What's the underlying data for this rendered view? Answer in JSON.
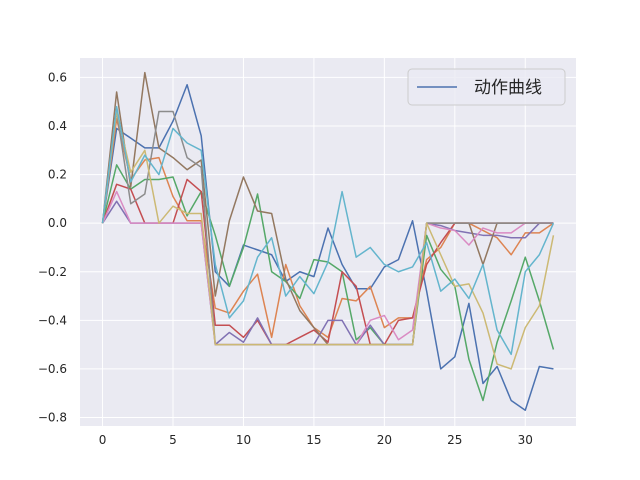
{
  "chart_data": {
    "type": "line",
    "title": "",
    "xlabel": "",
    "ylabel": "",
    "xlim": [
      -1.6,
      33.6
    ],
    "ylim": [
      -0.835,
      0.68
    ],
    "xticks": [
      0,
      5,
      10,
      15,
      20,
      25,
      30
    ],
    "yticks": [
      -0.8,
      -0.6,
      -0.4,
      -0.2,
      0.0,
      0.2,
      0.4,
      0.6
    ],
    "ytick_labels": [
      "−0.8",
      "−0.6",
      "−0.4",
      "−0.2",
      "0.0",
      "0.2",
      "0.4",
      "0.6"
    ],
    "grid": true,
    "legend": {
      "position": "upper-right",
      "entries": [
        "动作曲线"
      ]
    },
    "series": [
      {
        "color": "#4c72b0",
        "values": [
          0,
          0.39,
          0.35,
          0.31,
          0.31,
          0.42,
          0.57,
          0.36,
          -0.2,
          -0.26,
          -0.09,
          -0.11,
          -0.13,
          -0.24,
          -0.2,
          -0.22,
          -0.02,
          -0.17,
          -0.27,
          -0.27,
          -0.18,
          -0.15,
          0.01,
          -0.28,
          -0.6,
          -0.55,
          -0.33,
          -0.66,
          -0.59,
          -0.73,
          -0.77,
          -0.59,
          -0.6
        ]
      },
      {
        "color": "#dd8452",
        "values": [
          0,
          0.43,
          0.18,
          0.26,
          0.27,
          0.11,
          0.01,
          0.01,
          -0.35,
          -0.37,
          -0.28,
          -0.21,
          -0.47,
          -0.17,
          -0.34,
          -0.43,
          -0.47,
          -0.31,
          -0.32,
          -0.26,
          -0.43,
          -0.39,
          -0.39,
          -0.15,
          -0.1,
          0,
          0,
          -0.03,
          -0.06,
          -0.13,
          -0.04,
          -0.04,
          0
        ]
      },
      {
        "color": "#55a868",
        "values": [
          0,
          0.24,
          0.14,
          0.18,
          0.18,
          0.19,
          0.03,
          0.13,
          -0.05,
          -0.26,
          -0.1,
          0.12,
          -0.2,
          -0.24,
          -0.31,
          -0.15,
          -0.16,
          -0.2,
          -0.48,
          -0.43,
          -0.5,
          -0.5,
          -0.5,
          -0.05,
          -0.19,
          -0.26,
          -0.56,
          -0.73,
          -0.49,
          -0.32,
          -0.14,
          -0.32,
          -0.52
        ]
      },
      {
        "color": "#c44e52",
        "values": [
          0,
          0.16,
          0.14,
          0,
          0,
          0,
          0.18,
          0.13,
          -0.42,
          -0.42,
          -0.47,
          -0.4,
          -0.5,
          -0.5,
          -0.47,
          -0.44,
          -0.49,
          -0.2,
          -0.26,
          -0.5,
          -0.5,
          -0.4,
          -0.39,
          -0.17,
          -0.08,
          0,
          0,
          0,
          0,
          0,
          0,
          0,
          0
        ]
      },
      {
        "color": "#8172b3",
        "values": [
          0,
          0.09,
          0,
          0,
          0,
          0,
          0,
          0,
          -0.5,
          -0.45,
          -0.49,
          -0.39,
          -0.5,
          -0.5,
          -0.5,
          -0.5,
          -0.4,
          -0.4,
          -0.5,
          -0.42,
          -0.5,
          -0.5,
          -0.5,
          0,
          -0.01,
          -0.03,
          -0.04,
          -0.05,
          -0.05,
          -0.06,
          -0.06,
          0,
          0
        ]
      },
      {
        "color": "#937860",
        "values": [
          0,
          0.54,
          0.15,
          0.62,
          0.31,
          0.27,
          0.22,
          0.26,
          -0.3,
          0.01,
          0.19,
          0.05,
          0.04,
          -0.23,
          -0.36,
          -0.43,
          -0.5,
          -0.5,
          -0.5,
          -0.5,
          -0.5,
          -0.5,
          -0.5,
          0,
          0,
          0,
          0,
          -0.17,
          0,
          0,
          0,
          0,
          0
        ]
      },
      {
        "color": "#da8bc3",
        "values": [
          0,
          0.13,
          0,
          0,
          0,
          0,
          0,
          0,
          -0.5,
          -0.5,
          -0.5,
          -0.5,
          -0.5,
          -0.5,
          -0.5,
          -0.5,
          -0.5,
          -0.5,
          -0.5,
          -0.4,
          -0.38,
          -0.48,
          -0.44,
          0,
          -0.02,
          -0.03,
          -0.09,
          -0.02,
          -0.04,
          -0.04,
          0,
          0,
          0
        ]
      },
      {
        "color": "#8c8c8c",
        "values": [
          0,
          0.46,
          0.08,
          0.12,
          0.46,
          0.46,
          0.27,
          0.23,
          -0.5,
          -0.5,
          -0.5,
          -0.5,
          -0.5,
          -0.5,
          -0.5,
          -0.5,
          -0.5,
          -0.5,
          -0.5,
          -0.5,
          -0.5,
          -0.5,
          -0.5,
          0,
          0,
          0,
          0,
          0,
          0,
          0,
          0,
          0,
          0
        ]
      },
      {
        "color": "#ccb974",
        "values": [
          0,
          0.46,
          0.21,
          0.3,
          0,
          0.07,
          0.04,
          0.04,
          -0.5,
          -0.5,
          -0.5,
          -0.5,
          -0.5,
          -0.5,
          -0.5,
          -0.5,
          -0.5,
          -0.5,
          -0.5,
          -0.5,
          -0.5,
          -0.5,
          -0.5,
          0,
          -0.13,
          -0.26,
          -0.25,
          -0.37,
          -0.58,
          -0.6,
          -0.43,
          -0.34,
          -0.05
        ]
      },
      {
        "color": "#64b5cd",
        "values": [
          0,
          0.48,
          0.17,
          0.28,
          0.2,
          0.39,
          0.33,
          0.3,
          -0.17,
          -0.39,
          -0.32,
          -0.14,
          -0.06,
          -0.3,
          -0.22,
          -0.29,
          -0.16,
          0.13,
          -0.14,
          -0.1,
          -0.17,
          -0.2,
          -0.18,
          -0.08,
          -0.28,
          -0.23,
          -0.31,
          -0.17,
          -0.44,
          -0.54,
          -0.2,
          -0.13,
          0
        ]
      }
    ]
  }
}
